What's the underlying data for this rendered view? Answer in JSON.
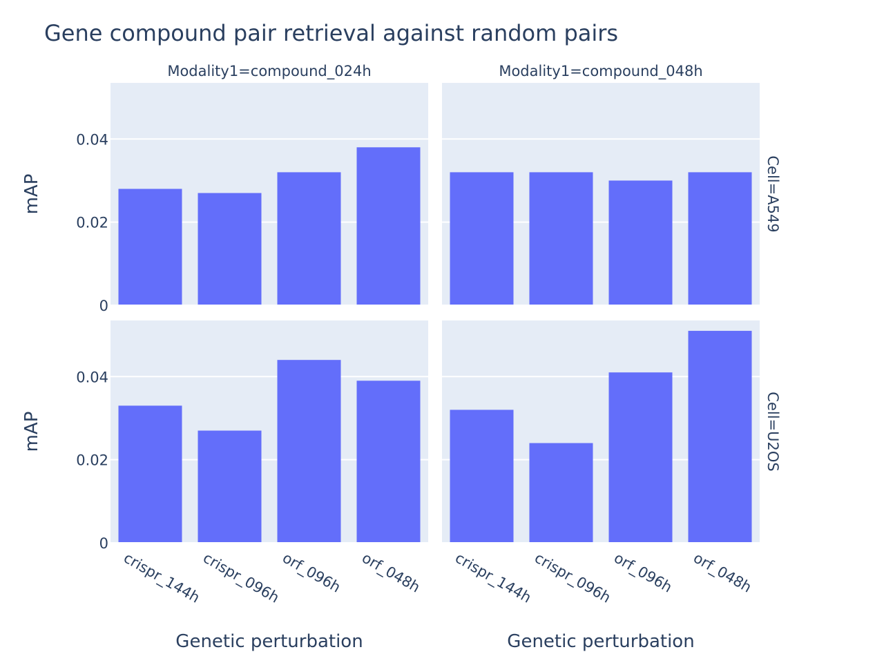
{
  "chart_data": {
    "type": "bar",
    "title": "Gene compound pair retrieval against random pairs",
    "xlabel": "Genetic perturbation",
    "ylabel": "mAP",
    "categories": [
      "crispr_144h",
      "crispr_096h",
      "orf_096h",
      "orf_048h"
    ],
    "ylim": [
      0,
      0.0535
    ],
    "yticks": [
      0,
      0.02,
      0.04
    ],
    "ytick_labels": [
      "0",
      "0.02",
      "0.04"
    ],
    "grid": true,
    "bar_color": "#636efa",
    "plot_bg_color": "#e5ecf6",
    "columns": [
      "Modality1=compound_024h",
      "Modality1=compound_048h"
    ],
    "rows": [
      "Cell=A549",
      "Cell=U2OS"
    ],
    "panels": [
      {
        "row": 0,
        "col": 0,
        "values": [
          0.028,
          0.027,
          0.032,
          0.038
        ]
      },
      {
        "row": 0,
        "col": 1,
        "values": [
          0.032,
          0.032,
          0.03,
          0.032
        ]
      },
      {
        "row": 1,
        "col": 0,
        "values": [
          0.033,
          0.027,
          0.044,
          0.039
        ]
      },
      {
        "row": 1,
        "col": 1,
        "values": [
          0.032,
          0.024,
          0.041,
          0.051
        ]
      }
    ]
  }
}
